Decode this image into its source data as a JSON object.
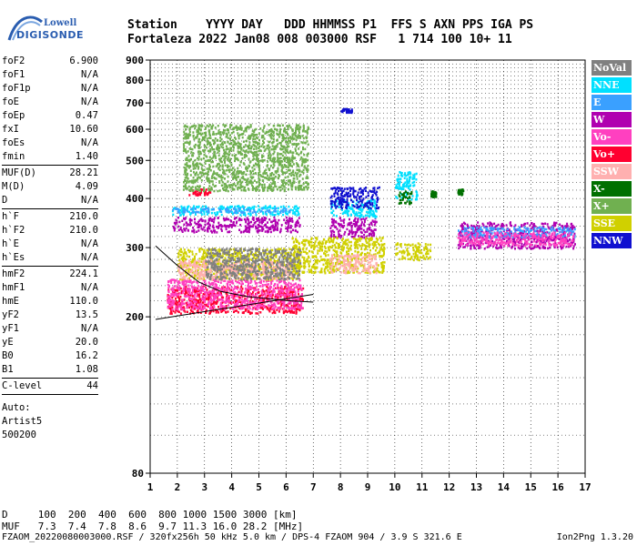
{
  "logo": {
    "top": "Lowell",
    "bottom": "DIGISONDE"
  },
  "header": {
    "line1": "Station    YYYY DAY   DDD HHMMSS P1  FFS S AXN PPS IGA PS",
    "line2": "Fortaleza 2022 Jan08 008 003000 RSF   1 714 100 10+ 11"
  },
  "params": {
    "group1": [
      {
        "label": "foF2",
        "value": "6.900"
      },
      {
        "label": "foF1",
        "value": "N/A"
      },
      {
        "label": "foF1p",
        "value": "N/A"
      },
      {
        "label": "foE",
        "value": "N/A"
      },
      {
        "label": "foEp",
        "value": "0.47"
      },
      {
        "label": "fxI",
        "value": "10.60"
      },
      {
        "label": "foEs",
        "value": "N/A"
      },
      {
        "label": "fmin",
        "value": "1.40"
      }
    ],
    "group2": [
      {
        "label": "MUF(D)",
        "value": "28.21"
      },
      {
        "label": "M(D)",
        "value": "4.09"
      },
      {
        "label": "D",
        "value": "N/A"
      }
    ],
    "group3": [
      {
        "label": "h`F",
        "value": "210.0"
      },
      {
        "label": "h`F2",
        "value": "210.0"
      },
      {
        "label": "h`E",
        "value": "N/A"
      },
      {
        "label": "h`Es",
        "value": "N/A"
      }
    ],
    "group4": [
      {
        "label": "hmF2",
        "value": "224.1"
      },
      {
        "label": "hmF1",
        "value": "N/A"
      },
      {
        "label": "hmE",
        "value": "110.0"
      },
      {
        "label": "yF2",
        "value": "13.5"
      },
      {
        "label": "yF1",
        "value": "N/A"
      },
      {
        "label": "yE",
        "value": "20.0"
      },
      {
        "label": "B0",
        "value": "16.2"
      },
      {
        "label": "B1",
        "value": "1.08"
      }
    ],
    "group5": [
      {
        "label": "C-level",
        "value": "44"
      }
    ],
    "auto": [
      "Auto:",
      "Artist5",
      "500200"
    ]
  },
  "legend": [
    {
      "label": "NoVal",
      "color": "#808080"
    },
    {
      "label": "NNE",
      "color": "#00e0ff"
    },
    {
      "label": "E",
      "color": "#3aa0ff"
    },
    {
      "label": "W",
      "color": "#b000b0"
    },
    {
      "label": "Vo-",
      "color": "#ff40c0"
    },
    {
      "label": "Vo+",
      "color": "#ff0030"
    },
    {
      "label": "SSW",
      "color": "#ffb0b0"
    },
    {
      "label": "X-",
      "color": "#007000"
    },
    {
      "label": "X+",
      "color": "#70b050"
    },
    {
      "label": "SSE",
      "color": "#d0d000"
    },
    {
      "label": "NNW",
      "color": "#1010d0"
    }
  ],
  "muf_table": {
    "line1": "D     100  200  400  600  800 1000 1500 3000 [km]",
    "line2": "MUF   7.3  7.4  7.8  8.6  9.7 11.3 16.0 28.2 [MHz]"
  },
  "footer": {
    "left": "FZAOM_20220080003000.RSF / 320fx256h 50 kHz 5.0 km / DPS-4 FZAOM 904 / 3.9 S 321.6 E",
    "right": "Ion2Png 1.3.20"
  },
  "chart_data": {
    "type": "scatter",
    "title": "",
    "xlabel": "",
    "ylabel": "",
    "xlim": [
      1,
      17
    ],
    "ylim": [
      80,
      900
    ],
    "x_ticks": [
      1,
      2,
      3,
      4,
      5,
      6,
      7,
      8,
      9,
      10,
      11,
      12,
      13,
      14,
      15,
      16,
      17
    ],
    "y_ticks": [
      80,
      200,
      300,
      400,
      500,
      600,
      700,
      800,
      900
    ],
    "y_scale": "log",
    "grid": true,
    "legend_position": "right",
    "series": [
      {
        "name": "W",
        "color": "#b000b0",
        "clusters": [
          {
            "x0": 1.8,
            "x1": 6.5,
            "y0": 330,
            "y1": 360
          },
          {
            "x0": 7.6,
            "x1": 9.3,
            "y0": 320,
            "y1": 360
          },
          {
            "x0": 12.3,
            "x1": 16.6,
            "y0": 300,
            "y1": 350
          }
        ]
      },
      {
        "name": "NNE",
        "color": "#00e0ff",
        "clusters": [
          {
            "x0": 1.8,
            "x1": 6.5,
            "y0": 365,
            "y1": 385
          },
          {
            "x0": 7.6,
            "x1": 9.3,
            "y0": 360,
            "y1": 400
          },
          {
            "x0": 10.0,
            "x1": 10.8,
            "y0": 400,
            "y1": 470
          }
        ]
      },
      {
        "name": "E",
        "color": "#3aa0ff",
        "clusters": [
          {
            "x0": 1.8,
            "x1": 6.2,
            "y0": 370,
            "y1": 380
          },
          {
            "x0": 12.3,
            "x1": 16.6,
            "y0": 320,
            "y1": 340
          }
        ]
      },
      {
        "name": "Vo+",
        "color": "#ff0030",
        "clusters": [
          {
            "x0": 1.6,
            "x1": 6.6,
            "y0": 205,
            "y1": 240
          },
          {
            "x0": 2.4,
            "x1": 3.2,
            "y0": 410,
            "y1": 425
          }
        ]
      },
      {
        "name": "Vo-",
        "color": "#ff40c0",
        "clusters": [
          {
            "x0": 1.6,
            "x1": 6.6,
            "y0": 210,
            "y1": 250
          },
          {
            "x0": 12.3,
            "x1": 16.6,
            "y0": 305,
            "y1": 330
          }
        ]
      },
      {
        "name": "SSE",
        "color": "#d0d000",
        "clusters": [
          {
            "x0": 2.0,
            "x1": 6.5,
            "y0": 250,
            "y1": 300
          },
          {
            "x0": 6.2,
            "x1": 9.6,
            "y0": 260,
            "y1": 320
          },
          {
            "x0": 10.0,
            "x1": 11.3,
            "y0": 280,
            "y1": 310
          }
        ]
      },
      {
        "name": "SSW",
        "color": "#ffb0b0",
        "clusters": [
          {
            "x0": 2.0,
            "x1": 6.2,
            "y0": 250,
            "y1": 280
          },
          {
            "x0": 7.6,
            "x1": 9.3,
            "y0": 260,
            "y1": 290
          }
        ]
      },
      {
        "name": "NNW",
        "color": "#1010d0",
        "clusters": [
          {
            "x0": 7.6,
            "x1": 9.4,
            "y0": 380,
            "y1": 430
          },
          {
            "x0": 8.0,
            "x1": 8.4,
            "y0": 665,
            "y1": 680
          }
        ]
      },
      {
        "name": "X-",
        "color": "#007000",
        "clusters": [
          {
            "x0": 10.1,
            "x1": 10.6,
            "y0": 390,
            "y1": 420
          },
          {
            "x0": 11.3,
            "x1": 11.5,
            "y0": 405,
            "y1": 420
          },
          {
            "x0": 12.3,
            "x1": 12.5,
            "y0": 410,
            "y1": 425
          }
        ]
      },
      {
        "name": "X+",
        "color": "#70b050",
        "clusters": [
          {
            "x0": 2.2,
            "x1": 6.8,
            "y0": 420,
            "y1": 620
          }
        ]
      },
      {
        "name": "NoVal",
        "color": "#808080",
        "clusters": [
          {
            "x0": 3.0,
            "x1": 6.5,
            "y0": 250,
            "y1": 300
          }
        ]
      }
    ],
    "profile_lines": [
      {
        "points": [
          [
            1.2,
            197
          ],
          [
            7.0,
            228
          ]
        ]
      },
      {
        "points": [
          [
            1.2,
            303
          ],
          [
            2.0,
            270
          ],
          [
            2.8,
            245
          ],
          [
            3.6,
            232
          ],
          [
            4.6,
            225
          ],
          [
            6.0,
            220
          ],
          [
            7.0,
            218
          ]
        ]
      }
    ]
  }
}
